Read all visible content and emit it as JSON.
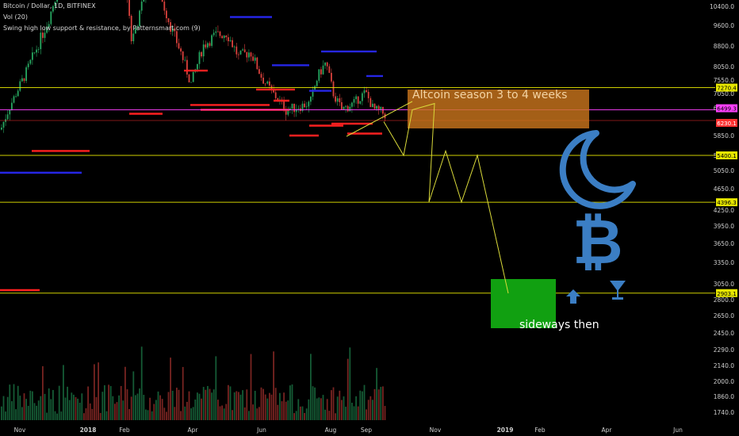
{
  "header": {
    "symbol_line": "Bitcoin / Dollar, 1D, BITFINEX",
    "volume_line": "Vol (20)",
    "indicator_line": "Swing high low support & resistance, by Patternsmart.com (9)"
  },
  "chart_data": {
    "type": "candlestick",
    "title": "Bitcoin / Dollar, 1D, BITFINEX",
    "y_axis_ticks": [
      "10400.0",
      "9600.0",
      "8800.0",
      "8050.0",
      "7550.0",
      "7050.0",
      "6550.0",
      "5850.0",
      "5400.0",
      "5050.0",
      "4650.0",
      "4250.0",
      "3950.0",
      "3650.0",
      "3350.0",
      "3050.0",
      "2800.0",
      "2650.0",
      "2450.0",
      "2290.0",
      "2140.0",
      "2000.0",
      "1860.0",
      "1740.0"
    ],
    "x_axis_ticks": [
      "Nov",
      "2018",
      "Feb",
      "Apr",
      "Jun",
      "Aug",
      "Sep",
      "Nov",
      "2019",
      "Feb",
      "Apr",
      "Jun"
    ],
    "price_tags": [
      {
        "label": "7270.4",
        "color": "#e6e600",
        "text_color": "#000000"
      },
      {
        "label": "6499.3",
        "color": "#ff40ff",
        "text_color": "#000000"
      },
      {
        "label": "6230.1",
        "color": "#ff3030",
        "text_color": "#ffffff"
      },
      {
        "label": "5400.1",
        "color": "#e6e600",
        "text_color": "#000000"
      },
      {
        "label": "4396.3",
        "color": "#e6e600",
        "text_color": "#000000"
      },
      {
        "label": "2903.1",
        "color": "#e6e600",
        "text_color": "#000000"
      }
    ],
    "horizontal_levels": [
      {
        "price": 7270.4,
        "color": "#e6e600"
      },
      {
        "price": 6499.3,
        "color": "#ff40ff"
      },
      {
        "price": 6230.1,
        "color": "#ff3030"
      },
      {
        "price": 5400.1,
        "color": "#e6e600"
      },
      {
        "price": 4396.3,
        "color": "#e6e600"
      },
      {
        "price": 2903.1,
        "color": "#e6e600"
      }
    ],
    "annotations": [
      {
        "text": "Altcoin season 3 to 4 weeks",
        "box_color": "#c8741c"
      },
      {
        "text": "sideways then",
        "box_color": "#11a011"
      }
    ],
    "projection_path_prices": [
      6200,
      5400,
      6500,
      6700,
      4400,
      5500,
      4400,
      5400,
      2900
    ],
    "grid": false,
    "legend": "none"
  },
  "icons": [
    "moon-icon",
    "bitcoin-icon",
    "arrow-up-icon",
    "cocktail-glass-icon"
  ],
  "colors": {
    "background": "#000000",
    "bull": "#27a660",
    "bear": "#d9413c",
    "support": "#ff2020",
    "resistance": "#2626e6",
    "level": "#e6e600",
    "icon_blue": "#3b7ec4"
  }
}
